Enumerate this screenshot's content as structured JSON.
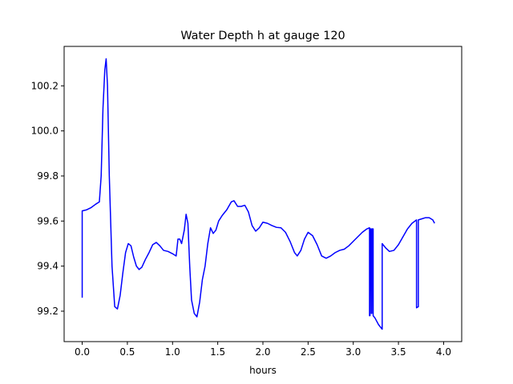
{
  "chart_data": {
    "type": "line",
    "title": "Water Depth h at gauge 120",
    "xlabel": "hours",
    "ylabel": "",
    "xlim": [
      -0.2,
      4.2
    ],
    "ylim": [
      99.065,
      100.375
    ],
    "grid": false,
    "line_color": "#0000ff",
    "x_ticks": [
      {
        "value": 0.0,
        "label": "0.0"
      },
      {
        "value": 0.5,
        "label": "0.5"
      },
      {
        "value": 1.0,
        "label": "1.0"
      },
      {
        "value": 1.5,
        "label": "1.5"
      },
      {
        "value": 2.0,
        "label": "2.0"
      },
      {
        "value": 2.5,
        "label": "2.5"
      },
      {
        "value": 3.0,
        "label": "3.0"
      },
      {
        "value": 3.5,
        "label": "3.5"
      },
      {
        "value": 4.0,
        "label": "4.0"
      }
    ],
    "y_ticks": [
      {
        "value": 99.2,
        "label": "99.2"
      },
      {
        "value": 99.4,
        "label": "99.4"
      },
      {
        "value": 99.6,
        "label": "99.6"
      },
      {
        "value": 99.8,
        "label": "99.8"
      },
      {
        "value": 100.0,
        "label": "100.0"
      },
      {
        "value": 100.2,
        "label": "100.2"
      }
    ],
    "series": [
      {
        "points": [
          [
            0.0,
            99.26
          ],
          [
            0.0,
            99.645
          ],
          [
            0.05,
            99.65
          ],
          [
            0.1,
            99.66
          ],
          [
            0.15,
            99.675
          ],
          [
            0.19,
            99.685
          ],
          [
            0.21,
            99.8
          ],
          [
            0.23,
            100.1
          ],
          [
            0.25,
            100.27
          ],
          [
            0.265,
            100.32
          ],
          [
            0.28,
            100.2
          ],
          [
            0.3,
            99.8
          ],
          [
            0.33,
            99.4
          ],
          [
            0.36,
            99.22
          ],
          [
            0.39,
            99.21
          ],
          [
            0.42,
            99.27
          ],
          [
            0.45,
            99.37
          ],
          [
            0.48,
            99.46
          ],
          [
            0.51,
            99.5
          ],
          [
            0.54,
            99.49
          ],
          [
            0.57,
            99.44
          ],
          [
            0.6,
            99.4
          ],
          [
            0.63,
            99.385
          ],
          [
            0.66,
            99.395
          ],
          [
            0.7,
            99.43
          ],
          [
            0.74,
            99.46
          ],
          [
            0.78,
            99.495
          ],
          [
            0.82,
            99.505
          ],
          [
            0.86,
            99.49
          ],
          [
            0.9,
            99.47
          ],
          [
            0.95,
            99.465
          ],
          [
            1.0,
            99.455
          ],
          [
            1.04,
            99.445
          ],
          [
            1.06,
            99.52
          ],
          [
            1.08,
            99.52
          ],
          [
            1.1,
            99.5
          ],
          [
            1.13,
            99.56
          ],
          [
            1.15,
            99.63
          ],
          [
            1.17,
            99.59
          ],
          [
            1.19,
            99.4
          ],
          [
            1.21,
            99.25
          ],
          [
            1.24,
            99.19
          ],
          [
            1.27,
            99.175
          ],
          [
            1.3,
            99.24
          ],
          [
            1.33,
            99.34
          ],
          [
            1.36,
            99.4
          ],
          [
            1.39,
            99.5
          ],
          [
            1.42,
            99.57
          ],
          [
            1.45,
            99.545
          ],
          [
            1.48,
            99.56
          ],
          [
            1.51,
            99.6
          ],
          [
            1.55,
            99.625
          ],
          [
            1.6,
            99.65
          ],
          [
            1.65,
            99.685
          ],
          [
            1.68,
            99.69
          ],
          [
            1.72,
            99.665
          ],
          [
            1.76,
            99.665
          ],
          [
            1.8,
            99.67
          ],
          [
            1.84,
            99.64
          ],
          [
            1.88,
            99.58
          ],
          [
            1.92,
            99.555
          ],
          [
            1.96,
            99.57
          ],
          [
            2.0,
            99.595
          ],
          [
            2.05,
            99.59
          ],
          [
            2.1,
            99.58
          ],
          [
            2.15,
            99.572
          ],
          [
            2.2,
            99.57
          ],
          [
            2.25,
            99.55
          ],
          [
            2.3,
            99.51
          ],
          [
            2.35,
            99.46
          ],
          [
            2.38,
            99.445
          ],
          [
            2.42,
            99.47
          ],
          [
            2.46,
            99.52
          ],
          [
            2.5,
            99.55
          ],
          [
            2.55,
            99.535
          ],
          [
            2.6,
            99.495
          ],
          [
            2.65,
            99.445
          ],
          [
            2.7,
            99.435
          ],
          [
            2.75,
            99.445
          ],
          [
            2.8,
            99.46
          ],
          [
            2.85,
            99.47
          ],
          [
            2.9,
            99.475
          ],
          [
            2.95,
            99.49
          ],
          [
            3.0,
            99.51
          ],
          [
            3.05,
            99.53
          ],
          [
            3.1,
            99.55
          ],
          [
            3.15,
            99.565
          ],
          [
            3.18,
            99.57
          ],
          [
            3.18,
            99.18
          ],
          [
            3.185,
            99.18
          ],
          [
            3.19,
            99.565
          ],
          [
            3.2,
            99.565
          ],
          [
            3.2,
            99.19
          ],
          [
            3.205,
            99.19
          ],
          [
            3.21,
            99.565
          ],
          [
            3.22,
            99.565
          ],
          [
            3.22,
            99.18
          ],
          [
            3.24,
            99.17
          ],
          [
            3.28,
            99.14
          ],
          [
            3.32,
            99.12
          ],
          [
            3.32,
            99.5
          ],
          [
            3.36,
            99.48
          ],
          [
            3.4,
            99.465
          ],
          [
            3.45,
            99.47
          ],
          [
            3.5,
            99.495
          ],
          [
            3.55,
            99.53
          ],
          [
            3.6,
            99.565
          ],
          [
            3.65,
            99.59
          ],
          [
            3.7,
            99.605
          ],
          [
            3.7,
            99.215
          ],
          [
            3.72,
            99.22
          ],
          [
            3.72,
            99.605
          ],
          [
            3.76,
            99.61
          ],
          [
            3.8,
            99.615
          ],
          [
            3.84,
            99.615
          ],
          [
            3.88,
            99.605
          ],
          [
            3.9,
            99.59
          ]
        ]
      }
    ]
  }
}
